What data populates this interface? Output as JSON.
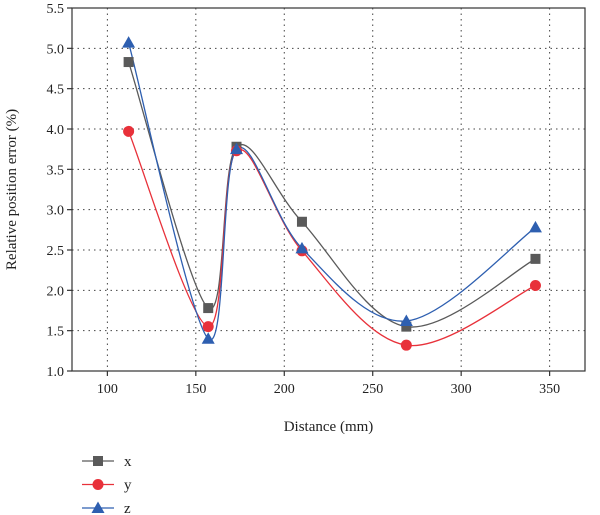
{
  "chart_data": {
    "type": "line",
    "xlabel": "Distance (mm)",
    "ylabel": "Relative position error (%)",
    "xlim": [
      80,
      370
    ],
    "ylim": [
      1.0,
      5.5
    ],
    "x_ticks": [
      100,
      150,
      200,
      250,
      300,
      350
    ],
    "y_ticks": [
      1.0,
      1.5,
      2.0,
      2.5,
      3.0,
      3.5,
      4.0,
      4.5,
      5.0,
      5.5
    ],
    "x_tick_labels": [
      "100",
      "150",
      "200",
      "250",
      "300",
      "350"
    ],
    "y_tick_labels": [
      "1.0",
      "1.5",
      "2.0",
      "2.5",
      "3.0",
      "3.5",
      "4.0",
      "4.5",
      "5.0",
      "5.5"
    ],
    "grid": true,
    "legend_position": "bottom-left",
    "x": [
      112,
      157,
      173,
      210,
      269,
      342
    ],
    "series": [
      {
        "name": "x",
        "values": [
          4.83,
          1.78,
          3.78,
          2.85,
          1.55,
          2.39
        ],
        "color": "#5a5a5a",
        "marker": "square"
      },
      {
        "name": "y",
        "values": [
          3.97,
          1.55,
          3.73,
          2.49,
          1.32,
          2.06
        ],
        "color": "#e8313a",
        "marker": "circle"
      },
      {
        "name": "z",
        "values": [
          5.07,
          1.4,
          3.75,
          2.52,
          1.62,
          2.78
        ],
        "color": "#2e5fb0",
        "marker": "triangle"
      }
    ]
  }
}
